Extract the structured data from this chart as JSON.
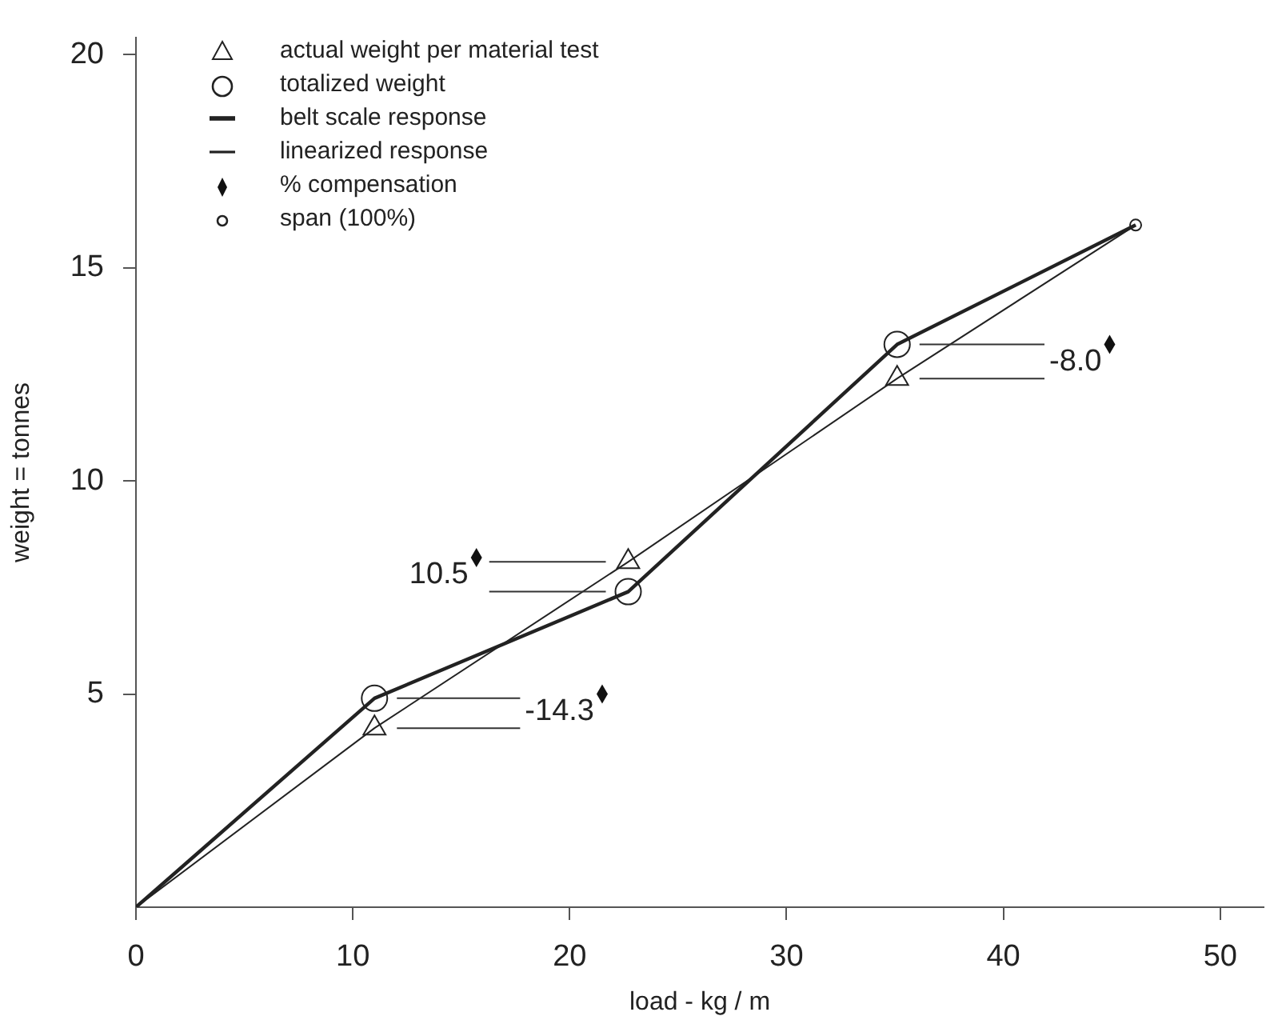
{
  "chart_data": {
    "type": "line",
    "xlabel": "load - kg / m",
    "ylabel": "weight = tonnes",
    "xlim": [
      0,
      52
    ],
    "xticks": [
      0,
      10,
      20,
      30,
      40,
      50
    ],
    "ylim": [
      0,
      20.4
    ],
    "yticks": [
      5,
      10,
      15,
      20
    ],
    "grid": false,
    "legend": "top left",
    "series": [
      {
        "name": "actual weight per material test",
        "type": "scatter",
        "marker": "triangle",
        "color": "#222222",
        "x": [
          11,
          22.7,
          35.1
        ],
        "values": [
          4.2,
          8.1,
          12.4
        ]
      },
      {
        "name": "totalized weight",
        "type": "scatter",
        "marker": "circle",
        "color": "#222222",
        "x": [
          11,
          22.7,
          35.1
        ],
        "values": [
          4.9,
          7.4,
          13.2
        ]
      },
      {
        "name": "belt scale response",
        "marker": "none",
        "color": "#222222",
        "x": [
          0,
          11,
          22.7,
          35.1,
          46.1
        ],
        "values": [
          0,
          4.9,
          7.4,
          13.2,
          16.0
        ]
      },
      {
        "name": "linearized response",
        "marker": "none",
        "color": "#222222",
        "x": [
          0,
          11,
          22.7,
          35.1,
          46.1
        ],
        "values": [
          0,
          4.2,
          8.1,
          12.4,
          16.0
        ]
      },
      {
        "name": "% compensation",
        "type": "scatter",
        "marker": "diamond",
        "color": "#111111"
      },
      {
        "name": "span (100%)",
        "type": "scatter",
        "marker": "circle",
        "color": "#222222",
        "x": [
          46.1
        ],
        "values": [
          16.0
        ]
      }
    ],
    "annotations": [
      {
        "text": "-14.3",
        "x": 21.5,
        "y": 5.0
      },
      {
        "text": "10.5",
        "x": 15.7,
        "y": 8.2
      },
      {
        "text": "-8.0",
        "x": 44.9,
        "y": 13.2
      }
    ]
  }
}
